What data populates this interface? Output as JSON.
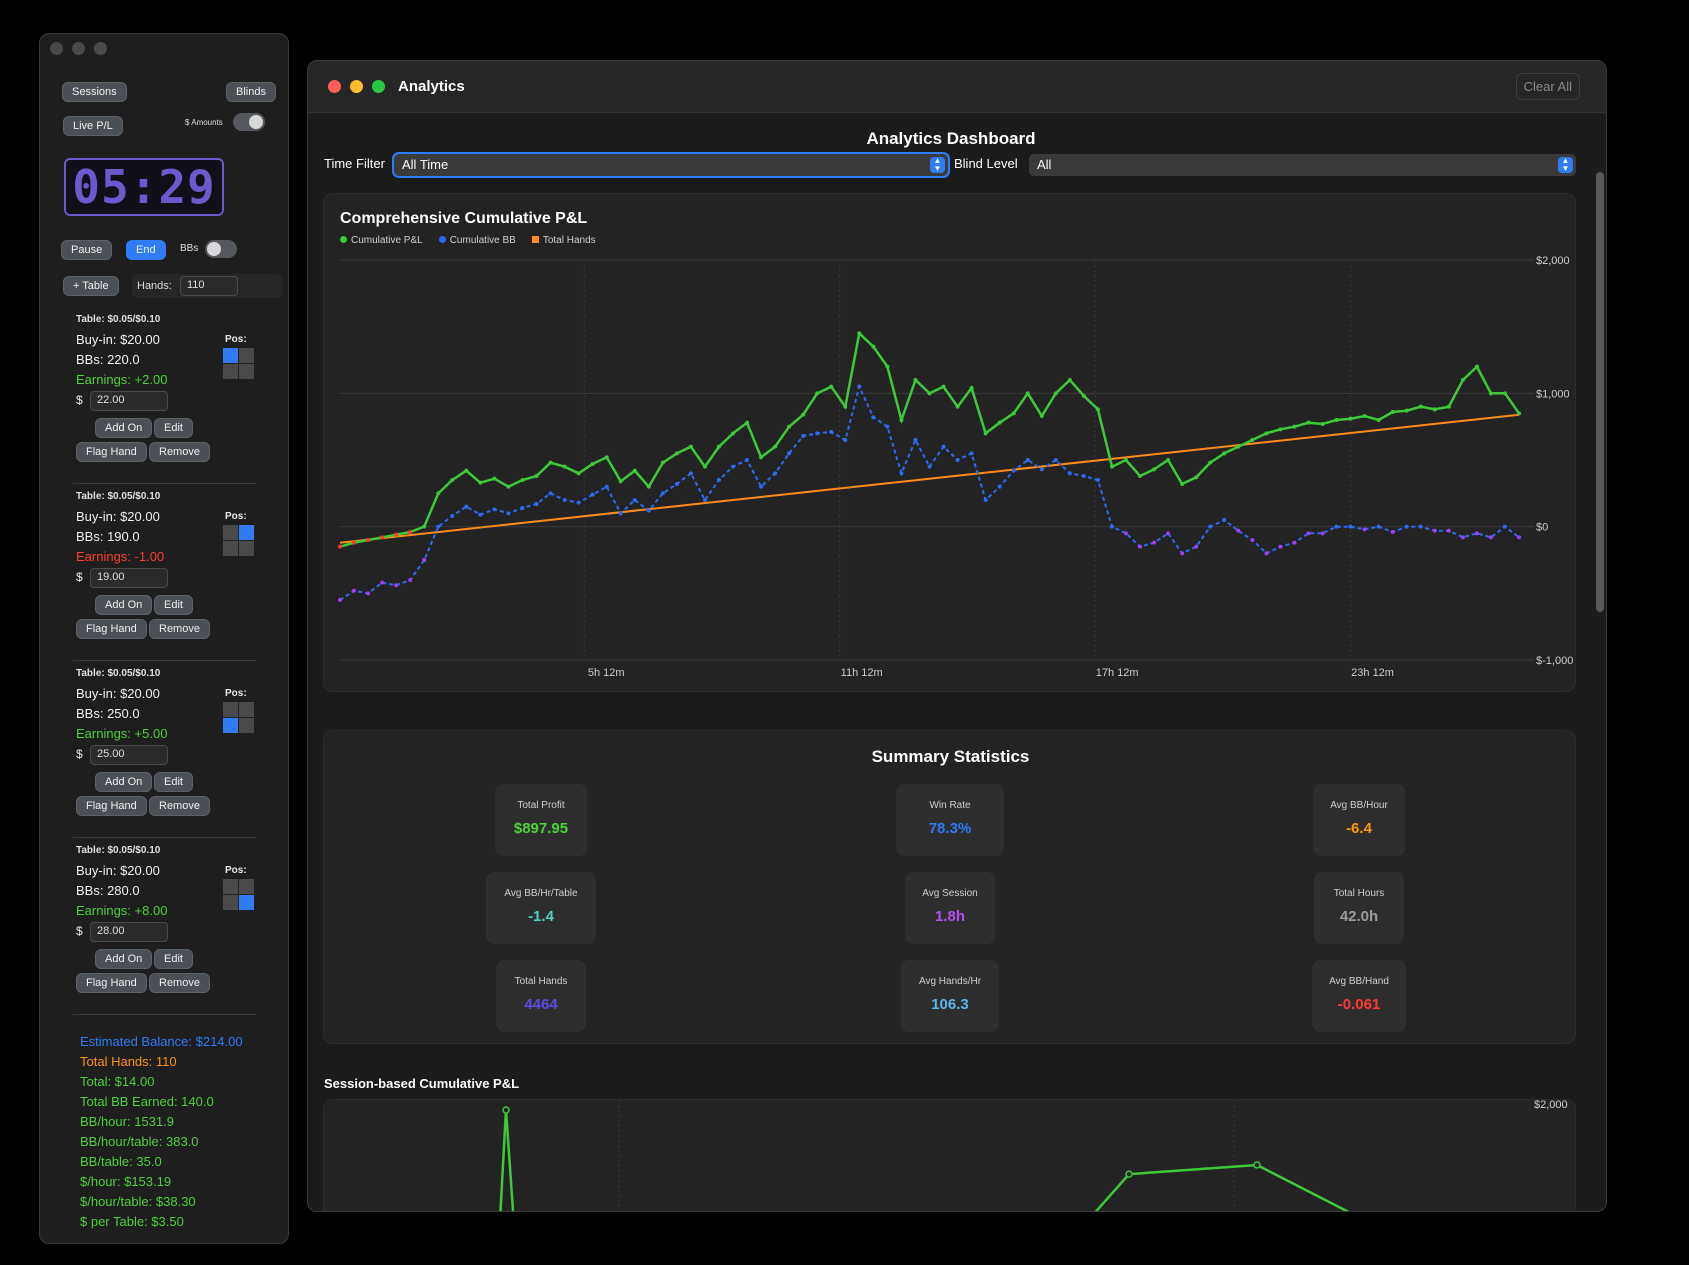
{
  "sidebar": {
    "sessions_label": "Sessions",
    "blinds_label": "Blinds",
    "live_pl_label": "Live P/L",
    "amounts_label": "$ Amounts",
    "timer": "05:29",
    "pause_label": "Pause",
    "end_label": "End",
    "bbs_label": "BBs",
    "add_table_label": "+ Table",
    "hands_label": "Hands:",
    "hands_value": "110",
    "pos_label": "Pos:",
    "add_on_label": "Add On",
    "edit_label": "Edit",
    "flag_hand_label": "Flag Hand",
    "remove_label": "Remove",
    "dollar_sign": "$",
    "tables": [
      {
        "title": "Table: $0.05/$0.10",
        "buyin": "Buy-in: $20.00",
        "bbs": "BBs: 220.0",
        "earnings": "Earnings: +2.00",
        "amount": "22.00",
        "pos_active": 0,
        "earn_color": "#4cd137"
      },
      {
        "title": "Table: $0.05/$0.10",
        "buyin": "Buy-in: $20.00",
        "bbs": "BBs: 190.0",
        "earnings": "Earnings: -1.00",
        "amount": "19.00",
        "pos_active": 1,
        "earn_color": "#ff3b30"
      },
      {
        "title": "Table: $0.05/$0.10",
        "buyin": "Buy-in: $20.00",
        "bbs": "BBs: 250.0",
        "earnings": "Earnings: +5.00",
        "amount": "25.00",
        "pos_active": 2,
        "earn_color": "#4cd137"
      },
      {
        "title": "Table: $0.05/$0.10",
        "buyin": "Buy-in: $20.00",
        "bbs": "BBs: 280.0",
        "earnings": "Earnings: +8.00",
        "amount": "28.00",
        "pos_active": 3,
        "earn_color": "#4cd137"
      }
    ],
    "summary": {
      "estimated_balance": "Estimated Balance: $214.00",
      "total_hands": "Total Hands: 110",
      "total": "Total: $14.00",
      "total_bb": "Total BB Earned: 140.0",
      "bb_hour": "BB/hour: 1531.9",
      "bb_hour_table": "BB/hour/table: 383.0",
      "bb_table": "BB/table: 35.0",
      "d_hour": "$/hour: $153.19",
      "d_hour_table": "$/hour/table: $38.30",
      "d_per_table": "$ per Table: $3.50"
    }
  },
  "window": {
    "title": "Analytics",
    "clear_all": "Clear All"
  },
  "dashboard": {
    "heading": "Analytics Dashboard",
    "time_filter_label": "Time Filter",
    "time_filter_value": "All Time",
    "blind_level_label": "Blind Level",
    "blind_level_value": "All",
    "summary_heading": "Summary Statistics",
    "session_chart_title": "Session-based Cumulative P&L",
    "session_chart_top_tick": "$2,000",
    "stats": [
      {
        "title": "Total Profit",
        "value": "$897.95",
        "color": "#4cd137"
      },
      {
        "title": "Win Rate",
        "value": "78.3%",
        "color": "#2f7cf6"
      },
      {
        "title": "Avg BB/Hour",
        "value": "-6.4",
        "color": "#ff9500"
      },
      {
        "title": "Avg BB/Hr/Table",
        "value": "-1.4",
        "color": "#4ed1c6"
      },
      {
        "title": "Avg Session",
        "value": "1.8h",
        "color": "#b44ff0"
      },
      {
        "title": "Total Hours",
        "value": "42.0h",
        "color": "#9a9a9a"
      },
      {
        "title": "Total Hands",
        "value": "4464",
        "color": "#5b4fe0"
      },
      {
        "title": "Avg Hands/Hr",
        "value": "106.3",
        "color": "#5ab4e8"
      },
      {
        "title": "Avg BB/Hand",
        "value": "-0.061",
        "color": "#ff3b30"
      }
    ]
  },
  "chart_data": [
    {
      "type": "line",
      "title": "Comprehensive Cumulative P&L",
      "legend": [
        "Cumulative P&L",
        "Cumulative BB",
        "Total Hands"
      ],
      "legend_colors": [
        "#3ec93a",
        "#2f6bf0",
        "#ff8c1a"
      ],
      "x_tick_labels": [
        "5h 12m",
        "11h 12m",
        "17h 12m",
        "23h 12m"
      ],
      "y_tick_labels": [
        "$2,000",
        "$1,000",
        "$0",
        "$-1,000"
      ],
      "ylim": [
        -1000,
        2000
      ],
      "xlim": [
        0,
        42
      ],
      "series": [
        {
          "name": "Cumulative P&L",
          "color": "#3ec93a",
          "x": [
            0,
            0.5,
            1,
            1.5,
            2,
            2.5,
            3,
            3.5,
            4,
            4.5,
            5,
            5.5,
            6,
            6.5,
            7,
            7.5,
            8,
            8.5,
            9,
            9.5,
            10,
            10.5,
            11,
            11.5,
            12,
            12.5,
            13,
            13.5,
            14,
            14.5,
            15,
            15.5,
            16,
            16.5,
            17,
            17.5,
            18,
            18.5,
            19,
            19.5,
            20,
            20.5,
            21,
            21.5,
            22,
            22.5,
            23,
            23.5,
            24,
            24.5,
            25,
            25.5,
            26,
            26.5,
            27,
            27.5,
            28,
            28.5,
            29,
            29.5,
            30,
            30.5,
            31,
            31.5,
            32,
            32.5,
            33,
            33.5,
            34,
            34.5,
            35,
            35.5,
            36,
            36.5,
            37,
            37.5,
            38,
            38.5,
            39,
            39.5,
            40,
            40.5,
            41,
            41.5,
            42
          ],
          "y": [
            -150,
            -120,
            -100,
            -80,
            -60,
            -40,
            0,
            250,
            350,
            420,
            330,
            360,
            300,
            350,
            380,
            480,
            450,
            400,
            470,
            520,
            340,
            420,
            300,
            480,
            550,
            600,
            450,
            600,
            700,
            780,
            520,
            600,
            750,
            840,
            1000,
            1050,
            900,
            1450,
            1350,
            1200,
            800,
            1100,
            1000,
            1050,
            900,
            1040,
            700,
            780,
            850,
            1000,
            830,
            1000,
            1100,
            980,
            880,
            450,
            500,
            380,
            430,
            500,
            320,
            370,
            480,
            550,
            600,
            650,
            700,
            730,
            750,
            780,
            770,
            800,
            810,
            830,
            800,
            860,
            870,
            900,
            880,
            900,
            1100,
            1200,
            1000,
            1000,
            850
          ]
        },
        {
          "name": "Cumulative BB",
          "color": "#2f6bf0",
          "x": [
            0,
            0.5,
            1,
            1.5,
            2,
            2.5,
            3,
            3.5,
            4,
            4.5,
            5,
            5.5,
            6,
            6.5,
            7,
            7.5,
            8,
            8.5,
            9,
            9.5,
            10,
            10.5,
            11,
            11.5,
            12,
            12.5,
            13,
            13.5,
            14,
            14.5,
            15,
            15.5,
            16,
            16.5,
            17,
            17.5,
            18,
            18.5,
            19,
            19.5,
            20,
            20.5,
            21,
            21.5,
            22,
            22.5,
            23,
            23.5,
            24,
            24.5,
            25,
            25.5,
            26,
            26.5,
            27,
            27.5,
            28,
            28.5,
            29,
            29.5,
            30,
            30.5,
            31,
            31.5,
            32,
            32.5,
            33,
            33.5,
            34,
            34.5,
            35,
            35.5,
            36,
            36.5,
            37,
            37.5,
            38,
            38.5,
            39,
            39.5,
            40,
            40.5,
            41,
            41.5,
            42
          ],
          "y": [
            -550,
            -480,
            -500,
            -420,
            -440,
            -400,
            -250,
            0,
            80,
            150,
            90,
            130,
            100,
            140,
            170,
            250,
            200,
            180,
            240,
            300,
            100,
            200,
            120,
            250,
            320,
            400,
            200,
            350,
            450,
            500,
            300,
            400,
            550,
            680,
            700,
            710,
            650,
            1050,
            820,
            750,
            400,
            650,
            450,
            600,
            500,
            550,
            200,
            300,
            420,
            500,
            430,
            500,
            400,
            380,
            350,
            0,
            -50,
            -150,
            -120,
            -50,
            -200,
            -150,
            0,
            50,
            -30,
            -100,
            -200,
            -150,
            -120,
            -50,
            -50,
            0,
            0,
            -20,
            0,
            -40,
            0,
            0,
            -30,
            -30,
            -80,
            -50,
            -80,
            0,
            -80
          ]
        },
        {
          "name": "Total Hands",
          "color": "#ff8c1a",
          "x": [
            0,
            42
          ],
          "y": [
            -120,
            840
          ]
        }
      ]
    },
    {
      "type": "line",
      "title": "Session-based Cumulative P&L",
      "y_tick_labels": [
        "$2,000"
      ],
      "series": [
        {
          "name": "",
          "color": "#3ec93a",
          "x": [
            0,
            1,
            2,
            3,
            4,
            5
          ],
          "y": [
            1600,
            1000,
            1100,
            1250,
            1300,
            1100
          ]
        }
      ]
    }
  ]
}
